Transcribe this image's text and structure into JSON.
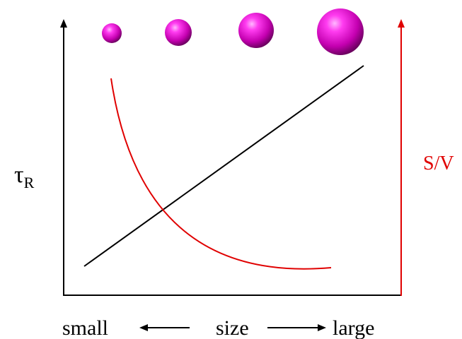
{
  "labels": {
    "left_axis": "τ",
    "left_axis_subscript": "R",
    "right_axis": "S/V",
    "x_left": "small",
    "x_center": "size",
    "x_right": "large"
  }
}
